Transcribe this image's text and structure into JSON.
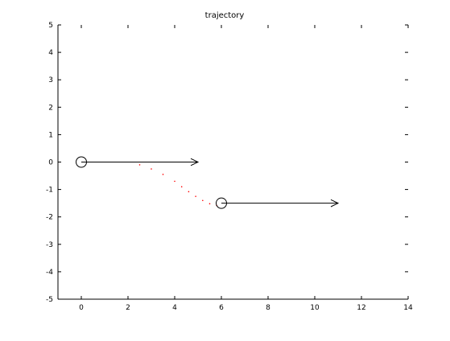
{
  "chart_data": {
    "type": "scatter",
    "title": "trajectory",
    "xlabel": "",
    "ylabel": "",
    "xlim": [
      -1,
      14
    ],
    "ylim": [
      -5,
      5
    ],
    "x_ticks": [
      0,
      2,
      4,
      6,
      8,
      10,
      12,
      14
    ],
    "y_ticks": [
      -5,
      -4,
      -3,
      -2,
      -1,
      0,
      1,
      2,
      3,
      4,
      5
    ],
    "grid": false,
    "box": "axes lines on left and bottom, tick marks on top and right",
    "series": [
      {
        "kind": "trajectory-dots",
        "color": "#ff0000",
        "x": [
          2.5,
          3.0,
          3.5,
          4.0,
          4.3,
          4.6,
          4.9,
          5.2,
          5.5,
          5.8
        ],
        "y": [
          -0.1,
          -0.25,
          -0.45,
          -0.7,
          -0.9,
          -1.08,
          -1.25,
          -1.4,
          -1.52,
          -1.58
        ]
      },
      {
        "kind": "start-marker",
        "marker": "circle",
        "color": "#000000",
        "x": [
          0
        ],
        "y": [
          0
        ]
      },
      {
        "kind": "end-marker",
        "marker": "circle",
        "color": "#000000",
        "x": [
          6
        ],
        "y": [
          -1.5
        ]
      }
    ],
    "annotations": [
      {
        "kind": "arrow",
        "color": "#000000",
        "from": [
          0,
          0
        ],
        "to": [
          5,
          0
        ]
      },
      {
        "kind": "arrow",
        "color": "#000000",
        "from": [
          6,
          -1.5
        ],
        "to": [
          11,
          -1.5
        ]
      }
    ]
  }
}
